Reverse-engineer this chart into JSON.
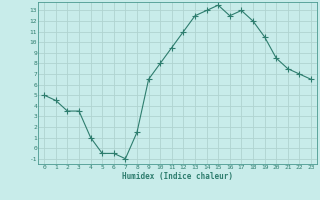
{
  "x": [
    0,
    1,
    2,
    3,
    4,
    5,
    6,
    7,
    8,
    9,
    10,
    11,
    12,
    13,
    14,
    15,
    16,
    17,
    18,
    19,
    20,
    21,
    22,
    23
  ],
  "y": [
    5,
    4.5,
    3.5,
    3.5,
    1,
    -0.5,
    -0.5,
    -1,
    1.5,
    6.5,
    8,
    9.5,
    11,
    12.5,
    13,
    13.5,
    12.5,
    13,
    12,
    10.5,
    8.5,
    7.5,
    7,
    6.5
  ],
  "line_color": "#2e7d6e",
  "marker": "+",
  "marker_size": 4,
  "bg_color": "#c8ecea",
  "grid_color": "#b0d4d0",
  "tick_color": "#2e7d6e",
  "xlabel": "Humidex (Indice chaleur)",
  "ylim": [
    -1.5,
    13.8
  ],
  "xlim": [
    -0.5,
    23.5
  ],
  "yticks": [
    -1,
    0,
    1,
    2,
    3,
    4,
    5,
    6,
    7,
    8,
    9,
    10,
    11,
    12,
    13
  ],
  "xticks": [
    0,
    1,
    2,
    3,
    4,
    5,
    6,
    7,
    8,
    9,
    10,
    11,
    12,
    13,
    14,
    15,
    16,
    17,
    18,
    19,
    20,
    21,
    22,
    23
  ]
}
